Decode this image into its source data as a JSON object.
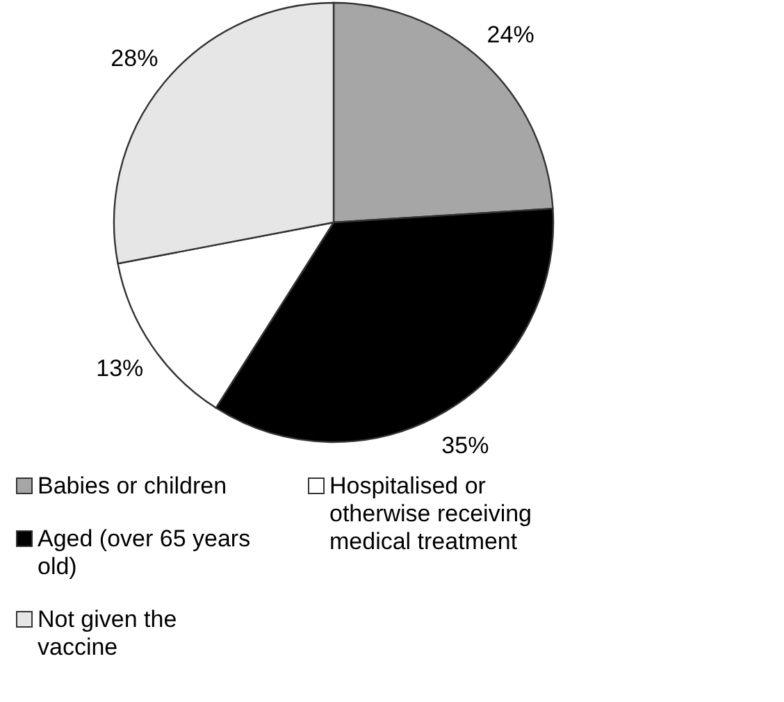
{
  "chart_data": {
    "type": "pie",
    "categories": [
      "Babies or children",
      "Aged (over 65 years old)",
      "Hospitalised or otherwise receiving medical treatment",
      "Not given the vaccine"
    ],
    "values": [
      24,
      35,
      13,
      28
    ],
    "colors": [
      "#a6a6a6",
      "#000000",
      "#ffffff",
      "#e6e6e6"
    ],
    "value_labels": [
      "24%",
      "35%",
      "13%",
      "28%"
    ],
    "legend": "bottom"
  }
}
